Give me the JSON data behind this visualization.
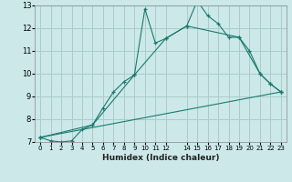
{
  "xlabel": "Humidex (Indice chaleur)",
  "bg_color": "#cce8e8",
  "grid_color": "#aacccc",
  "line_color": "#1a7a6e",
  "xlim": [
    -0.5,
    23.5
  ],
  "ylim": [
    7,
    13
  ],
  "yticks": [
    7,
    8,
    9,
    10,
    11,
    12,
    13
  ],
  "xticks": [
    0,
    1,
    2,
    3,
    4,
    5,
    6,
    7,
    8,
    9,
    10,
    11,
    12,
    14,
    15,
    16,
    17,
    18,
    19,
    20,
    21,
    22,
    23
  ],
  "xtick_labels": [
    "0",
    "1",
    "2",
    "3",
    "4",
    "5",
    "6",
    "7",
    "8",
    "9",
    "10",
    "11",
    "12",
    "14",
    "15",
    "16",
    "17",
    "18",
    "19",
    "20",
    "21",
    "22",
    "23"
  ],
  "series": [
    {
      "x": [
        0,
        1,
        2,
        3,
        4,
        5,
        6,
        7,
        8,
        9,
        10,
        11,
        12,
        14,
        15,
        16,
        17,
        18,
        19,
        20,
        21,
        22,
        23
      ],
      "y": [
        7.2,
        7.05,
        7.0,
        7.05,
        7.55,
        7.75,
        8.5,
        9.2,
        9.65,
        9.95,
        12.85,
        11.35,
        11.55,
        12.1,
        13.2,
        12.55,
        12.2,
        11.6,
        11.6,
        11.0,
        10.0,
        9.55,
        9.2
      ]
    },
    {
      "x": [
        0,
        23
      ],
      "y": [
        7.2,
        9.2
      ]
    },
    {
      "x": [
        0,
        5,
        9,
        12,
        14,
        19,
        21,
        22,
        23
      ],
      "y": [
        7.2,
        7.75,
        9.95,
        11.55,
        12.1,
        11.6,
        10.0,
        9.55,
        9.2
      ]
    }
  ]
}
